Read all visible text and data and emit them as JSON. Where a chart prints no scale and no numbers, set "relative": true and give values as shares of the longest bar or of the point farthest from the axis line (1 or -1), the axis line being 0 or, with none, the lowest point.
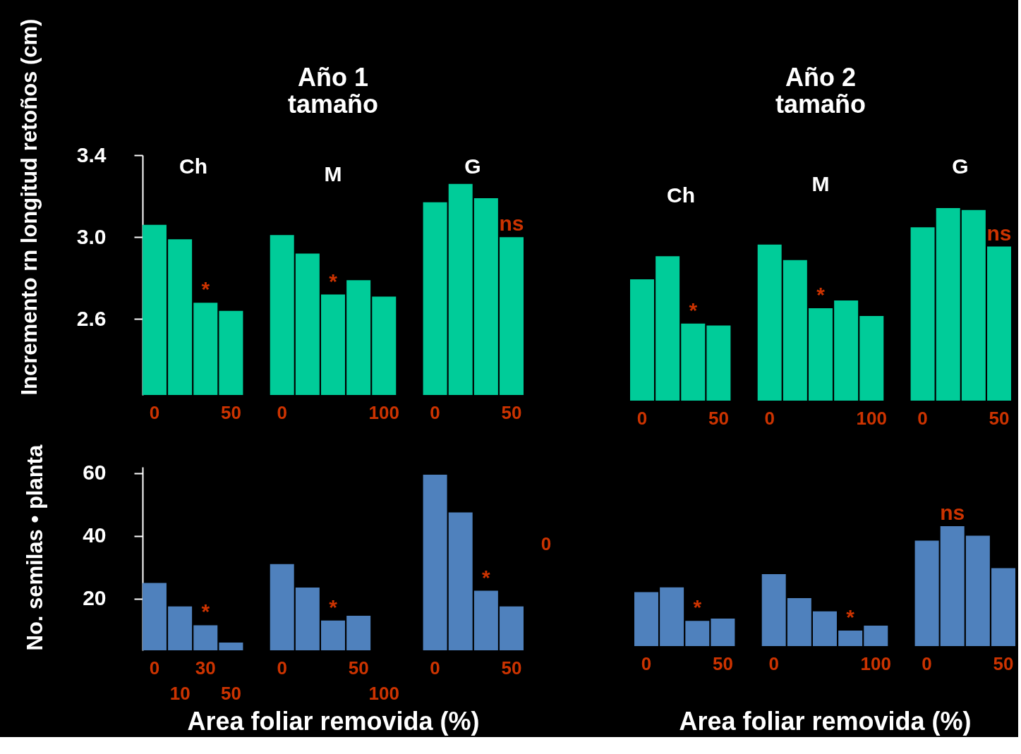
{
  "chart_data": [
    {
      "type": "bar",
      "title": "Año 1\ntamaño",
      "ylabel": "Incremento rn longitud retoños (cm)",
      "categories": [
        "0",
        null,
        null,
        "50",
        null,
        "0",
        null,
        null,
        null,
        "100",
        null,
        "0",
        null,
        null,
        "50"
      ],
      "series": [
        {
          "name": "Ch",
          "color": "#00cc99",
          "values": [
            3.06,
            2.99,
            2.68,
            2.64,
            null,
            null,
            null,
            null,
            null,
            null,
            null,
            null,
            null,
            null,
            null
          ]
        },
        {
          "name": "M",
          "color": "#00cc99",
          "values": [
            null,
            null,
            null,
            null,
            null,
            3.01,
            2.92,
            2.72,
            2.79,
            2.71,
            null,
            null,
            null,
            null,
            null
          ]
        },
        {
          "name": "G",
          "color": "#00cc99",
          "values": [
            null,
            null,
            null,
            null,
            null,
            null,
            null,
            null,
            null,
            null,
            null,
            3.17,
            3.26,
            3.19,
            3.0
          ]
        }
      ],
      "ylim": [
        2.23,
        3.4
      ],
      "yticks": [
        3.4,
        {
          "value": 3,
          "label": "3.0"
        },
        2.6
      ],
      "annotations": [
        {
          "text": "*",
          "y": 2.68
        },
        {
          "text": "*",
          "y": 2.72
        },
        {
          "text": "ns",
          "y": 3.0
        }
      ]
    },
    {
      "type": "bar",
      "title": "Año 2\ntamaño",
      "categories": [
        "0",
        null,
        null,
        "50",
        null,
        "0",
        null,
        null,
        null,
        "100",
        null,
        "0",
        null,
        null,
        "50"
      ],
      "series": [
        {
          "name": "Ch",
          "color": "#00cc99",
          "values": [
            0.63,
            0.75,
            0.4,
            0.39,
            null,
            null,
            null,
            null,
            null,
            null,
            null,
            null,
            null,
            null,
            null
          ]
        },
        {
          "name": "M",
          "color": "#00cc99",
          "values": [
            null,
            null,
            null,
            null,
            null,
            0.81,
            0.73,
            0.48,
            0.52,
            0.44,
            null,
            null,
            null,
            null,
            null
          ]
        },
        {
          "name": "G",
          "color": "#00cc99",
          "values": [
            null,
            null,
            null,
            null,
            null,
            null,
            null,
            null,
            null,
            null,
            null,
            0.9,
            1,
            0.99,
            0.8
          ]
        }
      ],
      "relative": true,
      "annotations": [
        {
          "text": "*",
          "y": 0.4
        },
        {
          "text": "*",
          "y": 0.48
        },
        {
          "text": "ns",
          "y": 0.8
        }
      ]
    },
    {
      "type": "bar",
      "ylabel": "No. semilas • planta",
      "xlabel": "Area foliar removida (%)",
      "categories": [
        "0",
        "10",
        "30",
        "50",
        null,
        "0",
        null,
        null,
        "50",
        "100",
        null,
        "0",
        null,
        null,
        "50"
      ],
      "values": [
        25,
        17.5,
        11.5,
        6,
        null,
        31,
        23.5,
        13,
        14.5,
        null,
        null,
        59.5,
        47.5,
        22.5,
        17.5
      ],
      "color": "#4f81bd",
      "ylim": [
        3.5,
        62
      ],
      "yticks": [
        60,
        40,
        20
      ],
      "annotations": [
        {
          "text": "*",
          "y": 11.5
        },
        {
          "text": "*",
          "y": 13
        },
        {
          "text": "*",
          "y": 22.5
        },
        "0"
      ]
    },
    {
      "type": "bar",
      "xlabel": "Area foliar removida (%)",
      "categories": [
        "0",
        null,
        null,
        "50",
        null,
        "0",
        null,
        null,
        null,
        "100",
        null,
        "0",
        null,
        null,
        "50"
      ],
      "values": [
        0.45,
        0.49,
        0.21,
        0.23,
        null,
        0.6,
        0.4,
        0.29,
        0.13,
        0.17,
        null,
        0.88,
        1,
        0.92,
        0.65
      ],
      "color": "#4f81bd",
      "relative": true,
      "annotations": [
        {
          "text": "*",
          "y": 0.21
        },
        {
          "text": "*",
          "y": 0.13
        },
        {
          "text": "ns",
          "y": 1
        }
      ]
    }
  ]
}
